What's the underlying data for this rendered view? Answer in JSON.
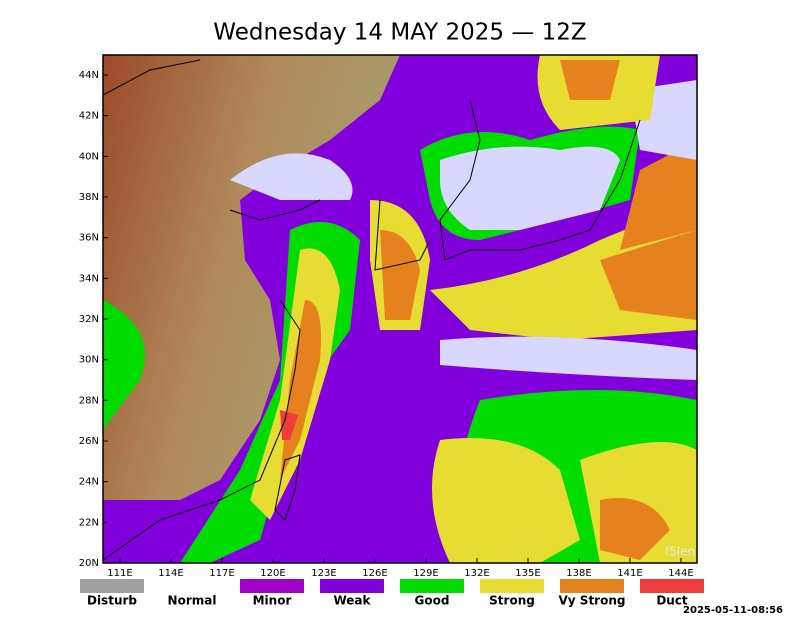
{
  "header": {
    "title": "Wednesday 14 MAY 2025 — 12Z"
  },
  "map": {
    "lat_labels": [
      "44N",
      "42N",
      "40N",
      "38N",
      "36N",
      "34N",
      "32N",
      "30N",
      "28N",
      "26N",
      "24N",
      "22N",
      "20N"
    ],
    "lon_labels": [
      "111E",
      "114E",
      "117E",
      "120E",
      "123E",
      "126E",
      "129E",
      "132E",
      "135E",
      "138E",
      "141E",
      "144E"
    ],
    "watermark": "f5len"
  },
  "legend": {
    "items": [
      {
        "name": "Disturb",
        "color": "#a0a0a0"
      },
      {
        "name": "Normal",
        "color": "#ffffff"
      },
      {
        "name": "Minor",
        "color": "#a000c8"
      },
      {
        "name": "Weak",
        "color": "#8200dc"
      },
      {
        "name": "Good",
        "color": "#00dc00"
      },
      {
        "name": "Strong",
        "color": "#e6dc32"
      },
      {
        "name": "Vy Strong",
        "color": "#e6821e"
      },
      {
        "name": "Duct",
        "color": "#f03c3c"
      }
    ]
  },
  "footer": {
    "timestamp": "2025-05-11-08:56"
  }
}
